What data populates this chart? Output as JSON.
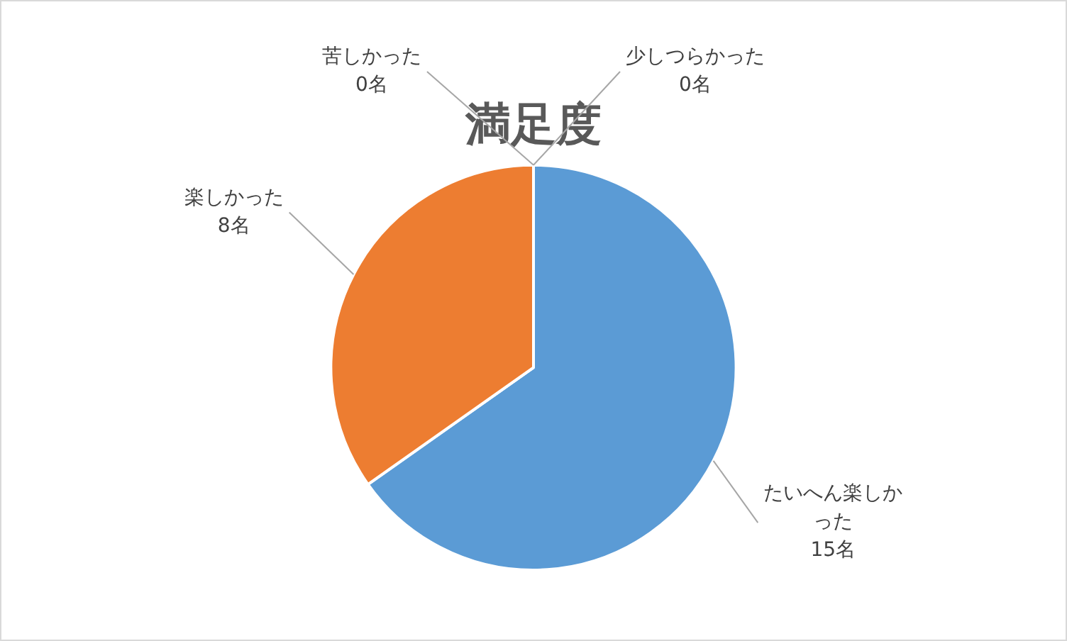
{
  "chart_data": {
    "type": "pie",
    "title": "満足度",
    "categories": [
      "たいへん楽しかった",
      "楽しかった",
      "少しつらかった",
      "苦しかった"
    ],
    "values": [
      15,
      8,
      0,
      0
    ],
    "colors": [
      "#5b9bd5",
      "#ed7d31",
      "#a5a5a5",
      "#ffc000"
    ],
    "value_labels": [
      "15名",
      "8名",
      "0名",
      "0名"
    ],
    "legend": false
  }
}
